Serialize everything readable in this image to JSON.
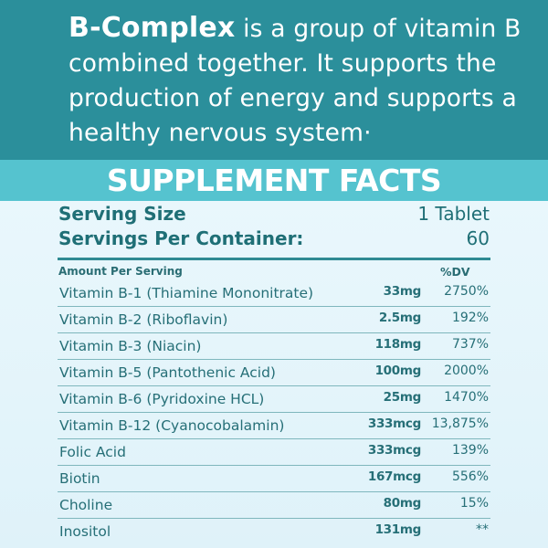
{
  "intro": {
    "brand": "B-Complex",
    "text": " is a group of vitamin B combined together. It supports the production of energy and supports a healthy nervous system·"
  },
  "title": "SUPPLEMENT FACTS",
  "serving": {
    "size_label": "Serving Size",
    "size_value": "1 Tablet",
    "per_container_label": "Servings Per Container:",
    "per_container_value": "60"
  },
  "table": {
    "amount_header": "Amount Per Serving",
    "dv_header": "%DV",
    "rows": [
      {
        "name": "Vitamin B-1 (Thiamine Mononitrate)",
        "amount": "33mg",
        "dv": "2750%"
      },
      {
        "name": "Vitamin B-2 (Riboflavin)",
        "amount": "2.5mg",
        "dv": "192%"
      },
      {
        "name": "Vitamin B-3 (Niacin)",
        "amount": "118mg",
        "dv": "737%"
      },
      {
        "name": "Vitamin B-5 (Pantothenic Acid)",
        "amount": "100mg",
        "dv": "2000%"
      },
      {
        "name": "Vitamin B-6 (Pyridoxine HCL)",
        "amount": "25mg",
        "dv": "1470%"
      },
      {
        "name": "Vitamin B-12 (Cyanocobalamin)",
        "amount": "333mcg",
        "dv": "13,875%"
      },
      {
        "name": "Folic Acid",
        "amount": "333mcg",
        "dv": "139%"
      },
      {
        "name": "Biotin",
        "amount": "167mcg",
        "dv": "556%"
      },
      {
        "name": "Choline",
        "amount": "80mg",
        "dv": "15%"
      },
      {
        "name": "Inositol",
        "amount": "131mg",
        "dv": "**"
      }
    ]
  },
  "colors": {
    "header_teal": "#2b8f9b",
    "band_teal": "#55c3cf",
    "text_teal": "#266f77",
    "background": "#e8f6fb"
  }
}
